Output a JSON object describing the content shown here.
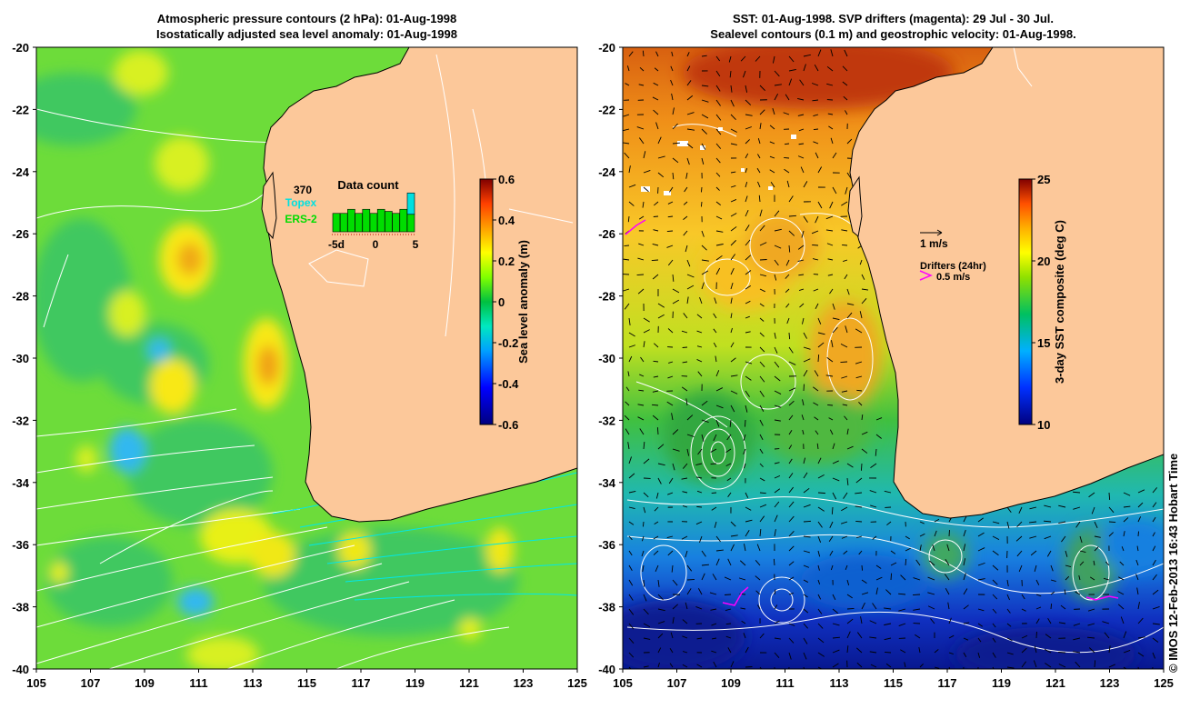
{
  "left_panel": {
    "title_line1": "Atmospheric pressure contours (2 hPa): 01-Aug-1998",
    "title_line2": "Isostatically adjusted sea level anomaly: 01-Aug-1998",
    "colorbar": {
      "label": "Sea level anomaly (m)",
      "ticks": [
        "0.6",
        "0.4",
        "0.2",
        "0",
        "-0.2",
        "-0.4",
        "-0.6"
      ],
      "colors": [
        "#00007f",
        "#0000ff",
        "#00a0ff",
        "#00ffff",
        "#00ff80",
        "#00c000",
        "#80ff00",
        "#ffff00",
        "#ffa000",
        "#ff4000",
        "#a00000",
        "#7f0000"
      ]
    },
    "inset": {
      "title": "Data count",
      "count": "370",
      "topex_label": "Topex",
      "ers_label": "ERS-2",
      "x_ticks": [
        "-5d",
        "0",
        "5"
      ],
      "topex_color": "#00e0e0",
      "ers_color": "#00dd00",
      "bars": [
        0.45,
        0.45,
        0.55,
        0.45,
        0.55,
        0.45,
        0.55,
        0.5,
        0.45,
        0.55,
        0.95
      ]
    }
  },
  "right_panel": {
    "title_line1": "SST: 01-Aug-1998. SVP drifters (magenta): 29 Jul - 30 Jul.",
    "title_line2": "Sealevel contours (0.1 m) and geostrophic velocity: 01-Aug-1998.",
    "colorbar": {
      "label": "3-day SST composite (deg C)",
      "ticks": [
        "25",
        "20",
        "15",
        "10"
      ]
    },
    "velocity_scale_label": "1 m/s",
    "drifters_label": "Drifters (24hr)",
    "drifter_scale_label": "0.5 m/s",
    "drifter_color": "#ff00ff"
  },
  "axes": {
    "lat_ticks": [
      "-20",
      "-22",
      "-24",
      "-26",
      "-28",
      "-30",
      "-32",
      "-34",
      "-36",
      "-38",
      "-40"
    ],
    "lon_ticks": [
      "105",
      "107",
      "109",
      "111",
      "113",
      "115",
      "117",
      "119",
      "121",
      "123",
      "125"
    ],
    "lat_range": [
      -40,
      -20
    ],
    "lon_range": [
      105,
      125
    ]
  },
  "colors": {
    "land": "#fcc89a",
    "ocean_left": "#6ddc3a",
    "coast": "#000000"
  },
  "credit": "© IMOS 12-Feb-2013 16:43 Hobart Time"
}
